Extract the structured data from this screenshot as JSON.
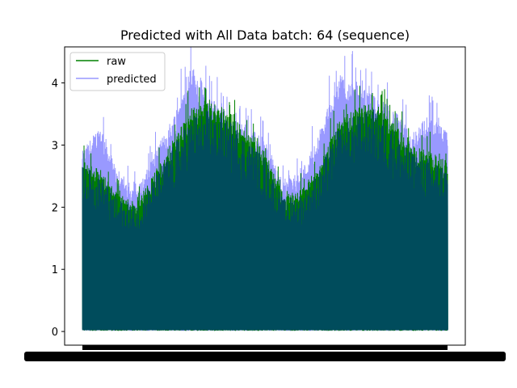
{
  "chart_data": {
    "type": "line",
    "title": "Predicted with All Data batch: 64 (sequence)",
    "xlabel": "",
    "ylabel": "",
    "ylim": [
      -0.22,
      4.58
    ],
    "y_ticks": [
      "0",
      "1",
      "2",
      "3",
      "4"
    ],
    "x_ticks_note": "x tick labels are dense overlapping date strings rendered as an illegible black band",
    "legend": {
      "placement": "top-left",
      "entries": [
        "raw",
        "predicted"
      ]
    },
    "grid": false,
    "series": [
      {
        "name": "raw",
        "color": "#008000",
        "style": "dense oscillation between 0 and the upper envelope",
        "envelope_x": [
          0,
          0.05,
          0.1,
          0.15,
          0.2,
          0.25,
          0.3,
          0.35,
          0.4,
          0.45,
          0.5,
          0.55,
          0.6,
          0.65,
          0.7,
          0.75,
          0.8,
          0.85,
          0.9,
          0.95,
          1.0
        ],
        "upper": [
          2.75,
          2.6,
          2.2,
          2.1,
          2.6,
          3.1,
          3.6,
          3.7,
          3.6,
          3.2,
          2.9,
          2.2,
          2.3,
          2.7,
          3.4,
          3.6,
          3.7,
          3.4,
          3.0,
          2.9,
          2.75
        ],
        "lower": [
          0,
          0,
          0,
          0,
          0,
          0,
          0,
          0,
          0,
          0,
          0,
          0,
          0,
          0,
          0,
          0,
          0,
          0,
          0,
          0,
          0
        ]
      },
      {
        "name": "predicted",
        "color": "#9999ff",
        "style": "dense oscillation between 0 and the upper envelope",
        "envelope_x": [
          0,
          0.05,
          0.1,
          0.15,
          0.2,
          0.25,
          0.3,
          0.35,
          0.4,
          0.45,
          0.5,
          0.55,
          0.6,
          0.65,
          0.7,
          0.75,
          0.8,
          0.85,
          0.9,
          0.95,
          1.0
        ],
        "upper": [
          2.9,
          3.35,
          2.5,
          2.3,
          2.9,
          3.5,
          4.3,
          3.8,
          3.5,
          3.3,
          3.1,
          2.4,
          2.6,
          3.2,
          4.2,
          4.0,
          3.8,
          3.6,
          3.2,
          3.5,
          3.2
        ],
        "lower": [
          0,
          0,
          0,
          0,
          0,
          0,
          0,
          0,
          0,
          0,
          0,
          0,
          0,
          0,
          0,
          0,
          0,
          0,
          0,
          0,
          0
        ]
      }
    ],
    "overlap_color": "#004c5c"
  }
}
